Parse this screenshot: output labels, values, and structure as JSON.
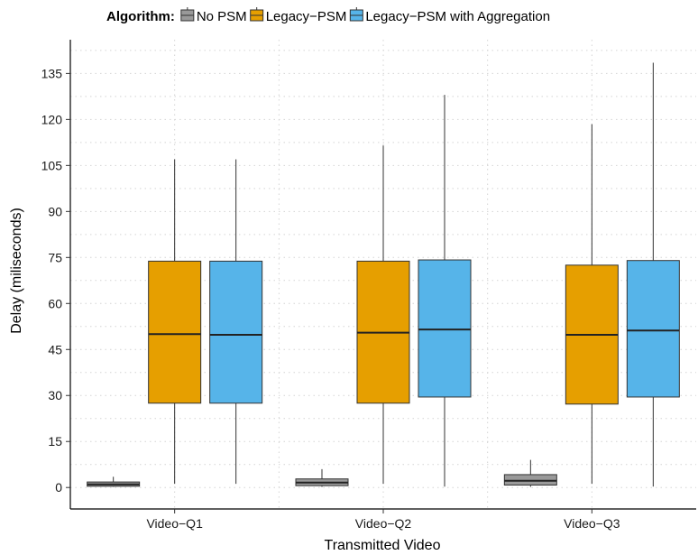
{
  "chart_data": {
    "type": "boxplot",
    "xlabel": "Transmitted Video",
    "ylabel": "Delay (miliseconds)",
    "ylim": [
      -7,
      146
    ],
    "y_ticks": [
      0,
      15,
      30,
      45,
      60,
      75,
      90,
      105,
      120,
      135
    ],
    "grid": "dotted major and minor",
    "legend_position": "top",
    "legend_title": "Algorithm:",
    "categories": [
      "Video−Q1",
      "Video−Q2",
      "Video−Q3"
    ],
    "series": [
      {
        "name": "No PSM",
        "color": "#999999",
        "boxes": [
          {
            "min": 0.2,
            "q1": 0.4,
            "median": 1.0,
            "q3": 1.8,
            "max": 3.5
          },
          {
            "min": 0.2,
            "q1": 0.6,
            "median": 1.6,
            "q3": 2.8,
            "max": 6.0
          },
          {
            "min": 0.2,
            "q1": 0.8,
            "median": 2.2,
            "q3": 4.2,
            "max": 9.0
          }
        ]
      },
      {
        "name": "Legacy−PSM",
        "color": "#E69F00",
        "boxes": [
          {
            "min": 1.2,
            "q1": 27.5,
            "median": 50.0,
            "q3": 73.8,
            "max": 107.0
          },
          {
            "min": 1.2,
            "q1": 27.5,
            "median": 50.5,
            "q3": 73.8,
            "max": 111.5
          },
          {
            "min": 1.2,
            "q1": 27.2,
            "median": 49.8,
            "q3": 72.5,
            "max": 118.5
          }
        ]
      },
      {
        "name": "Legacy−PSM with Aggregation",
        "color": "#56B4E9",
        "boxes": [
          {
            "min": 1.2,
            "q1": 27.5,
            "median": 49.8,
            "q3": 73.8,
            "max": 107.0
          },
          {
            "min": 0.3,
            "q1": 29.5,
            "median": 51.5,
            "q3": 74.2,
            "max": 128.0
          },
          {
            "min": 0.3,
            "q1": 29.5,
            "median": 51.2,
            "q3": 74.0,
            "max": 138.5
          }
        ]
      }
    ]
  }
}
